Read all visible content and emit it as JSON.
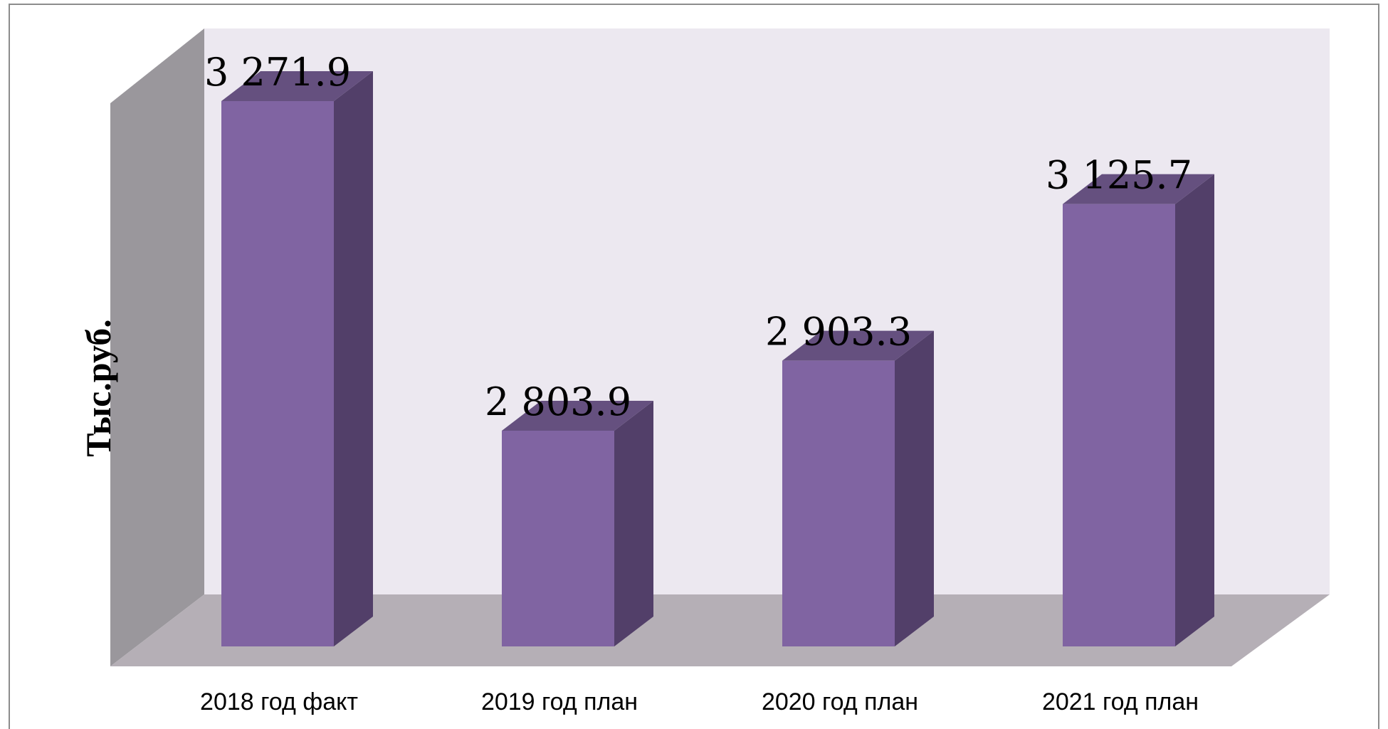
{
  "chart_data": {
    "type": "bar",
    "categories": [
      "2018 год факт",
      "2019 год план",
      "2020 год план",
      "2021 год план"
    ],
    "values": [
      3271.9,
      2803.9,
      2903.3,
      3125.7
    ],
    "value_labels": [
      "3 271.9",
      "2 803.9",
      "2 903.3",
      "3 125.7"
    ],
    "ylabel": "Тыс.руб.",
    "xlabel": "",
    "title": "",
    "grid": false,
    "style": "3d-column",
    "colors": {
      "bar_front": "#8064A2",
      "bar_side": "#523F69",
      "bar_top": "#65507F",
      "back_wall": "#ECE8F0",
      "side_wall": "#9A979C",
      "floor": "#B5AFB6",
      "frame": "#8C8C8C"
    }
  }
}
